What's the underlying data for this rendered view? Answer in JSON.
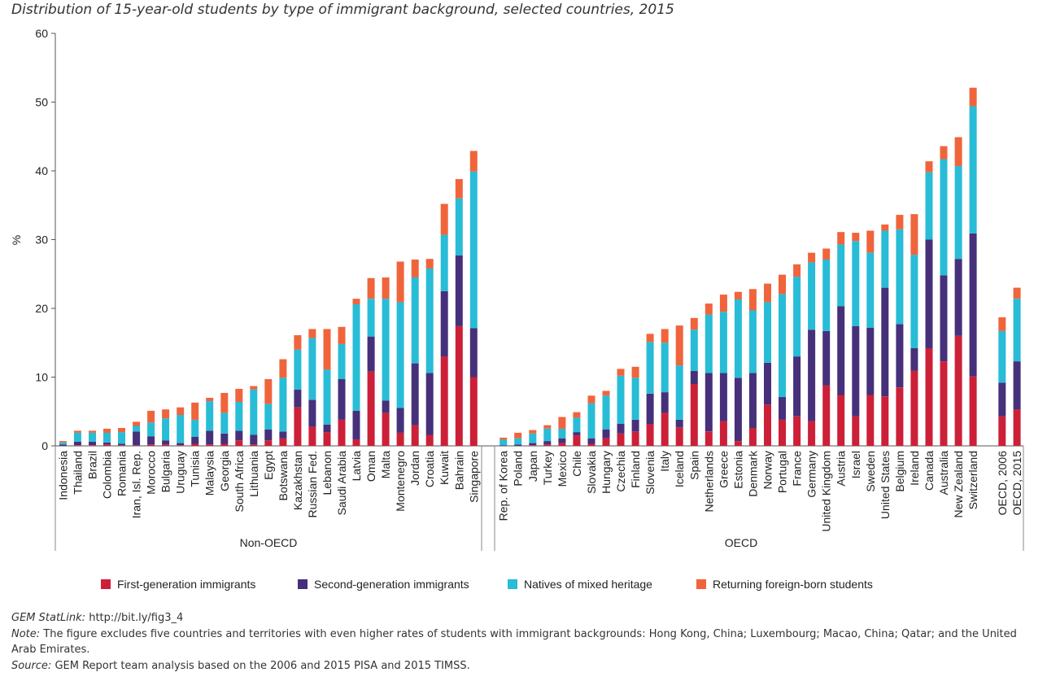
{
  "chart_data": {
    "type": "bar",
    "stacked": true,
    "title": "Distribution of 15-year-old students by type of immigrant background, selected countries, 2015",
    "ylabel": "%",
    "ylim": [
      0,
      60
    ],
    "yticks": [
      0,
      10,
      20,
      30,
      40,
      50,
      60
    ],
    "grid": false,
    "legend_position": "bottom",
    "series": [
      {
        "name": "First-generation immigrants",
        "color": "#cc2038"
      },
      {
        "name": "Second-generation immigrants",
        "color": "#46307a"
      },
      {
        "name": "Natives of mixed heritage",
        "color": "#28bcd6"
      },
      {
        "name": "Returning foreign-born students",
        "color": "#f0643c"
      }
    ],
    "groups": [
      {
        "label": "Non-OECD",
        "categories": [
          {
            "name": "Indonesia",
            "values": [
              0,
              0.2,
              0.3,
              0.2
            ]
          },
          {
            "name": "Thailand",
            "values": [
              0.1,
              0.5,
              1.3,
              0.3
            ]
          },
          {
            "name": "Brazil",
            "values": [
              0.1,
              0.5,
              1.3,
              0.3
            ]
          },
          {
            "name": "Colombia",
            "values": [
              0.2,
              0.3,
              1.4,
              0.6
            ]
          },
          {
            "name": "Romania",
            "values": [
              0.1,
              0.2,
              1.7,
              0.6
            ]
          },
          {
            "name": "Iran, Isl. Rep.",
            "values": [
              0.1,
              2.0,
              0.8,
              0.6
            ]
          },
          {
            "name": "Morocco",
            "values": [
              0.2,
              1.2,
              2.0,
              1.7
            ]
          },
          {
            "name": "Bulgaria",
            "values": [
              0.2,
              0.6,
              3.2,
              1.3
            ]
          },
          {
            "name": "Uruguay",
            "values": [
              0.1,
              0.3,
              4.1,
              1.1
            ]
          },
          {
            "name": "Tunisia",
            "values": [
              0.3,
              1.0,
              2.5,
              2.5
            ]
          },
          {
            "name": "Malaysia",
            "values": [
              0.2,
              2.0,
              4.3,
              0.5
            ]
          },
          {
            "name": "Georgia",
            "values": [
              0.3,
              1.5,
              3.0,
              2.9
            ]
          },
          {
            "name": "South Africa",
            "values": [
              0.8,
              1.4,
              4.2,
              1.9
            ]
          },
          {
            "name": "Lithuania",
            "values": [
              0.2,
              1.4,
              6.6,
              0.5
            ]
          },
          {
            "name": "Egypt",
            "values": [
              0.8,
              1.6,
              3.7,
              3.6
            ]
          },
          {
            "name": "Botswana",
            "values": [
              1.1,
              1.0,
              7.8,
              2.7
            ]
          },
          {
            "name": "Kazakhstan",
            "values": [
              5.6,
              2.6,
              5.8,
              2.1
            ]
          },
          {
            "name": "Russian Fed.",
            "values": [
              2.8,
              3.9,
              9.0,
              1.3
            ]
          },
          {
            "name": "Lebanon",
            "values": [
              2.0,
              1.1,
              8.0,
              5.9
            ]
          },
          {
            "name": "Saudi Arabia",
            "values": [
              3.8,
              5.9,
              5.1,
              2.5
            ]
          },
          {
            "name": "Latvia",
            "values": [
              0.9,
              4.2,
              15.5,
              0.8
            ]
          },
          {
            "name": "Oman",
            "values": [
              10.8,
              5.1,
              5.5,
              3.0
            ]
          },
          {
            "name": "Malta",
            "values": [
              4.8,
              1.8,
              14.8,
              3.1
            ]
          },
          {
            "name": "Montenegro",
            "values": [
              1.9,
              3.6,
              15.4,
              5.9
            ]
          },
          {
            "name": "Jordan",
            "values": [
              3.0,
              9.0,
              12.5,
              2.6
            ]
          },
          {
            "name": "Croatia",
            "values": [
              1.6,
              9.0,
              15.2,
              1.4
            ]
          },
          {
            "name": "Kuwait",
            "values": [
              13.0,
              9.5,
              8.2,
              4.5
            ]
          },
          {
            "name": "Bahrain",
            "values": [
              17.4,
              10.3,
              8.3,
              2.8
            ]
          },
          {
            "name": "Singapore",
            "values": [
              10.0,
              7.1,
              22.8,
              3.0
            ]
          }
        ]
      },
      {
        "label": "OECD",
        "categories": [
          {
            "name": "Rep. of Korea",
            "values": [
              0,
              0.1,
              0.8,
              0.3
            ]
          },
          {
            "name": "Poland",
            "values": [
              0,
              0.2,
              0.9,
              0.8
            ]
          },
          {
            "name": "Japan",
            "values": [
              0.1,
              0.3,
              1.4,
              0.5
            ]
          },
          {
            "name": "Turkey",
            "values": [
              0.2,
              0.5,
              1.8,
              0.5
            ]
          },
          {
            "name": "Mexico",
            "values": [
              0.4,
              0.7,
              1.4,
              1.7
            ]
          },
          {
            "name": "Chile",
            "values": [
              1.5,
              0.5,
              2.1,
              0.8
            ]
          },
          {
            "name": "Slovakia",
            "values": [
              0.3,
              0.8,
              5.1,
              1.1
            ]
          },
          {
            "name": "Hungary",
            "values": [
              1.1,
              1.3,
              4.9,
              0.7
            ]
          },
          {
            "name": "Czechia",
            "values": [
              1.8,
              1.4,
              7.0,
              1.0
            ]
          },
          {
            "name": "Finland",
            "values": [
              2.1,
              1.7,
              6.1,
              1.6
            ]
          },
          {
            "name": "Slovenia",
            "values": [
              3.2,
              4.4,
              7.5,
              1.2
            ]
          },
          {
            "name": "Italy",
            "values": [
              4.8,
              3.0,
              7.2,
              2.0
            ]
          },
          {
            "name": "Iceland",
            "values": [
              2.7,
              1.1,
              7.9,
              5.8
            ]
          },
          {
            "name": "Spain",
            "values": [
              9.0,
              1.9,
              6.0,
              1.7
            ]
          },
          {
            "name": "Netherlands",
            "values": [
              2.1,
              8.5,
              8.5,
              1.6
            ]
          },
          {
            "name": "Greece",
            "values": [
              3.6,
              7.0,
              8.9,
              2.5
            ]
          },
          {
            "name": "Estonia",
            "values": [
              0.7,
              9.2,
              11.4,
              1.1
            ]
          },
          {
            "name": "Denmark",
            "values": [
              2.6,
              8.0,
              9.1,
              3.1
            ]
          },
          {
            "name": "Norway",
            "values": [
              6.0,
              6.1,
              8.8,
              2.7
            ]
          },
          {
            "name": "Portugal",
            "values": [
              3.8,
              3.3,
              15.0,
              2.8
            ]
          },
          {
            "name": "France",
            "values": [
              4.3,
              8.7,
              11.6,
              1.8
            ]
          },
          {
            "name": "Germany",
            "values": [
              3.6,
              13.3,
              9.8,
              1.4
            ]
          },
          {
            "name": "United Kingdom",
            "values": [
              8.8,
              7.9,
              10.4,
              1.6
            ]
          },
          {
            "name": "Austria",
            "values": [
              7.4,
              12.9,
              9.0,
              1.8
            ]
          },
          {
            "name": "Israel",
            "values": [
              4.3,
              13.1,
              12.4,
              1.2
            ]
          },
          {
            "name": "Sweden",
            "values": [
              7.4,
              9.8,
              10.9,
              3.2
            ]
          },
          {
            "name": "United States",
            "values": [
              7.2,
              15.8,
              8.3,
              0.9
            ]
          },
          {
            "name": "Belgium",
            "values": [
              8.5,
              9.2,
              13.8,
              2.1
            ]
          },
          {
            "name": "Ireland",
            "values": [
              10.9,
              3.3,
              13.6,
              5.9
            ]
          },
          {
            "name": "Canada",
            "values": [
              14.2,
              15.8,
              9.8,
              1.6
            ]
          },
          {
            "name": "Australia",
            "values": [
              12.3,
              12.5,
              16.9,
              1.9
            ]
          },
          {
            "name": "New Zealand",
            "values": [
              16.0,
              11.2,
              13.5,
              4.2
            ]
          },
          {
            "name": "Switzerland",
            "values": [
              10.1,
              20.8,
              18.5,
              2.7
            ]
          }
        ]
      },
      {
        "label": "",
        "categories": [
          {
            "name": "OECD, 2006",
            "values": [
              4.3,
              4.9,
              7.5,
              2.0
            ]
          },
          {
            "name": "OECD, 2015",
            "values": [
              5.3,
              7.0,
              9.1,
              1.6
            ]
          }
        ]
      }
    ]
  },
  "notes": {
    "statlink_label": "GEM StatLink:",
    "statlink_text": "http://bit.ly/fig3_4",
    "note_label": "Note:",
    "note_text": "The figure excludes five countries and territories with even higher rates of students with immigrant backgrounds: Hong Kong, China; Luxembourg; Macao, China; Qatar; and the United Arab Emirates.",
    "source_label": "Source:",
    "source_text": "GEM Report team analysis based on the 2006 and 2015 PISA and 2015 TIMSS."
  }
}
